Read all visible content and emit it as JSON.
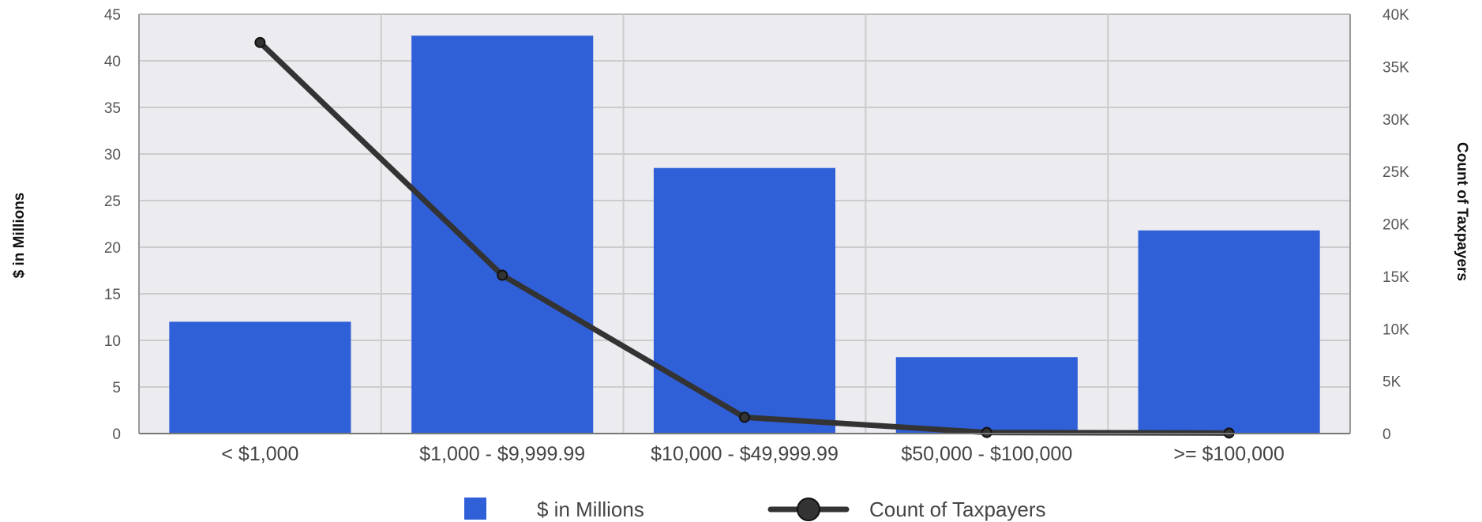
{
  "chart_data": {
    "type": "bar",
    "categories": [
      "< $1,000",
      "$1,000 - $9,999.99",
      "$10,000 - $49,999.99",
      "$50,000 - $100,000",
      ">= $100,000"
    ],
    "series": [
      {
        "name": "$ in Millions",
        "type": "bar",
        "axis": "left",
        "color": "#3060d8",
        "values": [
          12,
          42.7,
          28.5,
          8.2,
          21.8
        ]
      },
      {
        "name": "Count of Taxpayers",
        "type": "line",
        "axis": "right",
        "color": "#333333",
        "values": [
          37300,
          15100,
          1550,
          100,
          50
        ]
      }
    ],
    "ylabel": "$ in Millions",
    "y2label": "Count of Taxpayers",
    "ylim": [
      0,
      45
    ],
    "y2lim": [
      0,
      40000
    ],
    "yticks": [
      "0",
      "5",
      "10",
      "15",
      "20",
      "25",
      "30",
      "35",
      "40",
      "45"
    ],
    "y2ticks": [
      "0",
      "5K",
      "10K",
      "15K",
      "20K",
      "25K",
      "30K",
      "35K",
      "40K"
    ],
    "grid": true,
    "legend": "bottom",
    "background": "#ebebf0"
  }
}
